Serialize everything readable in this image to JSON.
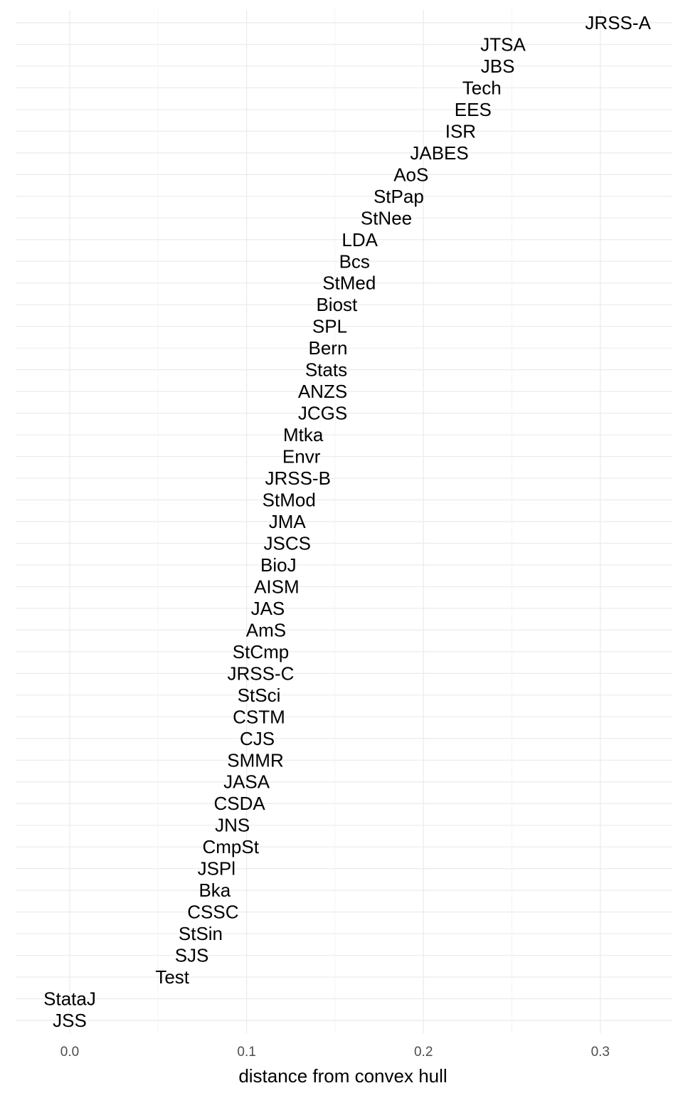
{
  "chart_data": {
    "type": "scatter",
    "mark": "text",
    "xlabel": "distance from convex hull",
    "ylabel": "",
    "xlim": [
      -0.03,
      0.343
    ],
    "x_ticks": [
      0.0,
      0.1,
      0.2,
      0.3
    ],
    "x_tick_labels": [
      "0.0",
      "0.1",
      "0.2",
      "0.3"
    ],
    "grid": true,
    "points": [
      {
        "label": "JSS",
        "x": 0.0
      },
      {
        "label": "StataJ",
        "x": 0.0
      },
      {
        "label": "Test",
        "x": 0.058
      },
      {
        "label": "SJS",
        "x": 0.069
      },
      {
        "label": "StSin",
        "x": 0.074
      },
      {
        "label": "CSSC",
        "x": 0.081
      },
      {
        "label": "Bka",
        "x": 0.082
      },
      {
        "label": "JSPl",
        "x": 0.083
      },
      {
        "label": "CmpSt",
        "x": 0.091
      },
      {
        "label": "JNS",
        "x": 0.092
      },
      {
        "label": "CSDA",
        "x": 0.096
      },
      {
        "label": "JASA",
        "x": 0.1
      },
      {
        "label": "SMMR",
        "x": 0.105
      },
      {
        "label": "CJS",
        "x": 0.106
      },
      {
        "label": "CSTM",
        "x": 0.107
      },
      {
        "label": "StSci",
        "x": 0.107
      },
      {
        "label": "JRSS-C",
        "x": 0.108
      },
      {
        "label": "StCmp",
        "x": 0.108
      },
      {
        "label": "AmS",
        "x": 0.111
      },
      {
        "label": "JAS",
        "x": 0.112
      },
      {
        "label": "AISM",
        "x": 0.117
      },
      {
        "label": "BioJ",
        "x": 0.118
      },
      {
        "label": "JSCS",
        "x": 0.123
      },
      {
        "label": "JMA",
        "x": 0.123
      },
      {
        "label": "StMod",
        "x": 0.124
      },
      {
        "label": "JRSS-B",
        "x": 0.129
      },
      {
        "label": "Envr",
        "x": 0.131
      },
      {
        "label": "Mtka",
        "x": 0.132
      },
      {
        "label": "JCGS",
        "x": 0.143
      },
      {
        "label": "ANZS",
        "x": 0.143
      },
      {
        "label": "Stats",
        "x": 0.145
      },
      {
        "label": "Bern",
        "x": 0.146
      },
      {
        "label": "SPL",
        "x": 0.147
      },
      {
        "label": "Biost",
        "x": 0.151
      },
      {
        "label": "StMed",
        "x": 0.158
      },
      {
        "label": "Bcs",
        "x": 0.161
      },
      {
        "label": "LDA",
        "x": 0.164
      },
      {
        "label": "StNee",
        "x": 0.179
      },
      {
        "label": "StPap",
        "x": 0.186
      },
      {
        "label": "AoS",
        "x": 0.193
      },
      {
        "label": "JABES",
        "x": 0.209
      },
      {
        "label": "ISR",
        "x": 0.221
      },
      {
        "label": "EES",
        "x": 0.228
      },
      {
        "label": "Tech",
        "x": 0.233
      },
      {
        "label": "JBS",
        "x": 0.242
      },
      {
        "label": "JTSA",
        "x": 0.245
      },
      {
        "label": "JRSS-A",
        "x": 0.31
      }
    ]
  }
}
